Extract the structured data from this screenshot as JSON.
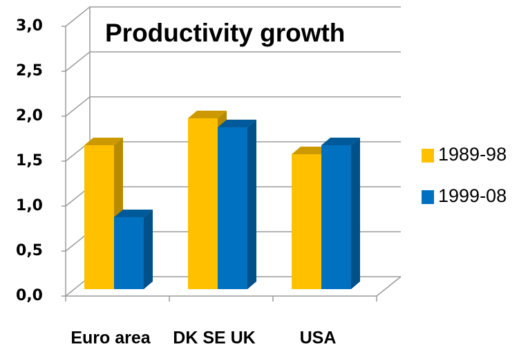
{
  "chart_data": {
    "type": "bar3d",
    "title": "Productivity growth",
    "categories": [
      "Euro area",
      "DK SE UK",
      "USA"
    ],
    "series": [
      {
        "name": "1989-98",
        "color": "#FFC000",
        "values": [
          1.6,
          1.9,
          1.5
        ]
      },
      {
        "name": "1999-08",
        "color": "#0070C0",
        "values": [
          0.8,
          1.8,
          1.6
        ]
      }
    ],
    "ylim": [
      0,
      3
    ],
    "yticks": [
      {
        "value": 0,
        "label": "0,0"
      },
      {
        "value": 0.5,
        "label": "0,5"
      },
      {
        "value": 1,
        "label": "1,0"
      },
      {
        "value": 1.5,
        "label": "1,5"
      },
      {
        "value": 2,
        "label": "2,0"
      },
      {
        "value": 2.5,
        "label": "2,5"
      },
      {
        "value": 3,
        "label": "3,0"
      }
    ],
    "grid": true,
    "legend": "right"
  }
}
